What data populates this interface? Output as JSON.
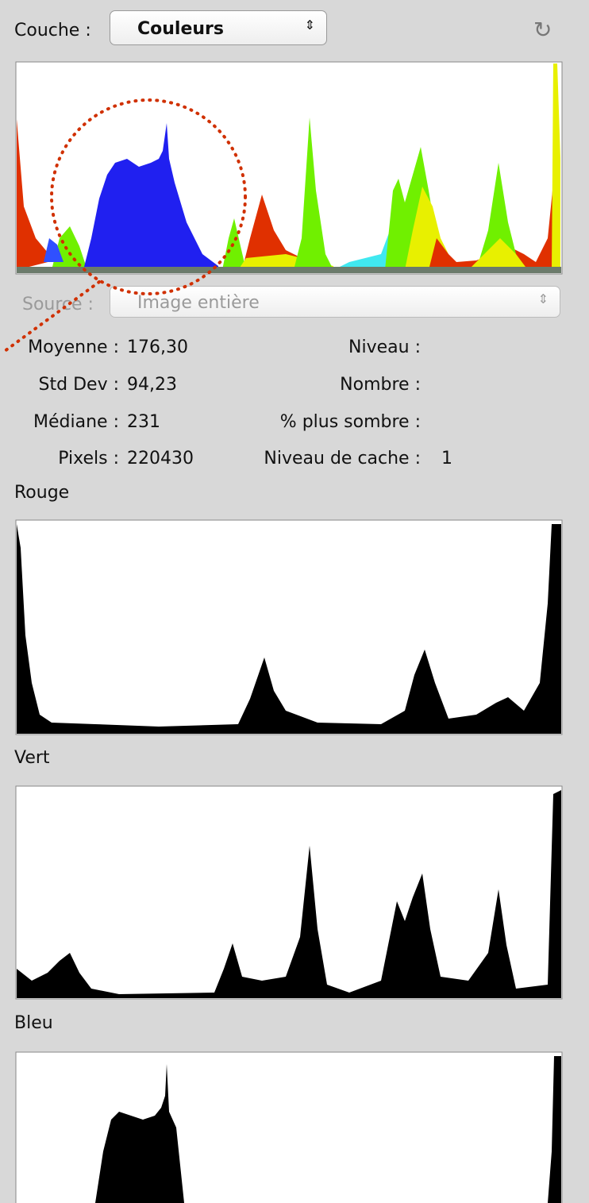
{
  "header": {
    "layer_label": "Couche :",
    "layer_value": "Couleurs"
  },
  "source": {
    "label": "Source :",
    "value": "Image entière"
  },
  "stats": {
    "left": [
      {
        "label": "Moyenne :",
        "value": "176,30"
      },
      {
        "label": "Std Dev :",
        "value": "94,23"
      },
      {
        "label": "Médiane :",
        "value": "231"
      },
      {
        "label": "Pixels :",
        "value": "220430"
      }
    ],
    "right": [
      {
        "label": "Niveau :"
      },
      {
        "label": "Nombre :"
      },
      {
        "label": "% plus sombre :"
      },
      {
        "label": "Niveau de cache :",
        "value": "1"
      }
    ]
  },
  "channels": [
    "Rouge",
    "Vert",
    "Bleu"
  ]
}
